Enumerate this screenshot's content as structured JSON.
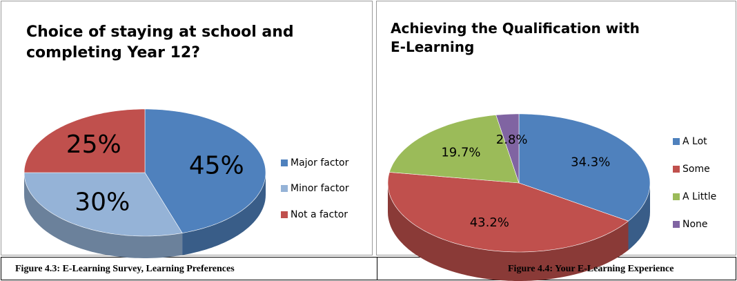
{
  "chart_data": [
    {
      "type": "pie",
      "title": "Choice of staying at school and completing Year 12?",
      "categories": [
        "Major factor",
        "Minor factor",
        "Not a factor"
      ],
      "values": [
        45,
        30,
        25
      ],
      "value_labels": [
        "45%",
        "30%",
        "25%"
      ],
      "colors": [
        "#4f81bd",
        "#95b3d7",
        "#c0504d"
      ],
      "caption": "Figure 4.3: E-Learning Survey, Learning Preferences"
    },
    {
      "type": "pie",
      "title": "Achieving the Qualification with E-Learning",
      "categories": [
        "A Lot",
        "Some",
        "A Little",
        "None"
      ],
      "values": [
        34.3,
        43.2,
        19.7,
        2.8
      ],
      "value_labels": [
        "34.3%",
        "43.2%",
        "19.7%",
        "2.8%"
      ],
      "colors": [
        "#4f81bd",
        "#c0504d",
        "#9bbb59",
        "#8064a2"
      ],
      "caption": "Figure 4.4: Your E-Learning Experience"
    }
  ]
}
